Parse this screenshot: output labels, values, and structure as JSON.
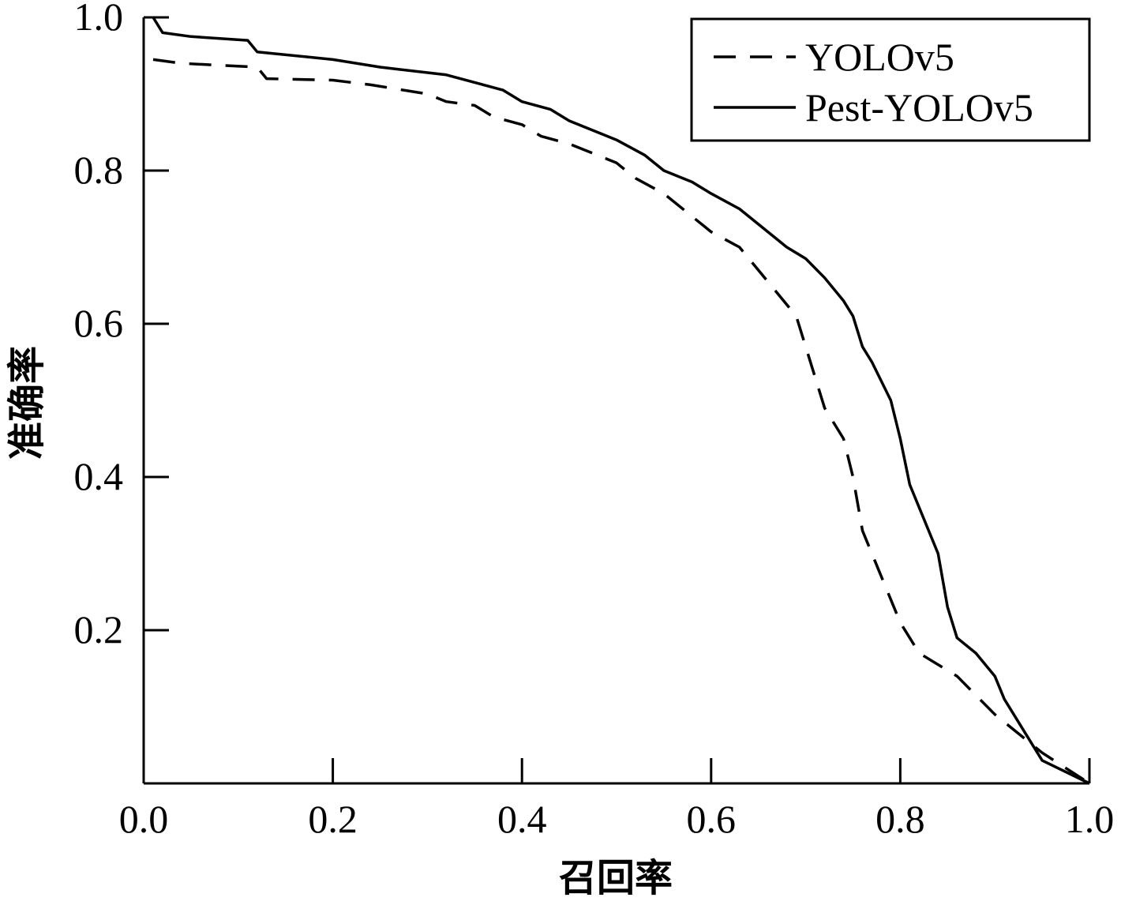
{
  "chart_data": {
    "type": "line",
    "title": "",
    "xlabel": "召回率",
    "ylabel": "准确率",
    "xlim": [
      0,
      1
    ],
    "ylim": [
      0,
      1
    ],
    "xticks": [
      "0.0",
      "0.2",
      "0.4",
      "0.6",
      "0.8",
      "1.0"
    ],
    "yticks": [
      "0.2",
      "0.4",
      "0.6",
      "0.8",
      "1.0"
    ],
    "grid": false,
    "legend_position": "top-right",
    "series": [
      {
        "name": "YOLOv5",
        "style": "dashed",
        "points": [
          [
            0.01,
            0.945
          ],
          [
            0.04,
            0.94
          ],
          [
            0.12,
            0.935
          ],
          [
            0.13,
            0.92
          ],
          [
            0.2,
            0.918
          ],
          [
            0.24,
            0.912
          ],
          [
            0.3,
            0.9
          ],
          [
            0.32,
            0.89
          ],
          [
            0.35,
            0.885
          ],
          [
            0.37,
            0.87
          ],
          [
            0.4,
            0.86
          ],
          [
            0.42,
            0.845
          ],
          [
            0.45,
            0.835
          ],
          [
            0.48,
            0.82
          ],
          [
            0.5,
            0.81
          ],
          [
            0.52,
            0.79
          ],
          [
            0.55,
            0.77
          ],
          [
            0.58,
            0.74
          ],
          [
            0.6,
            0.72
          ],
          [
            0.63,
            0.7
          ],
          [
            0.65,
            0.67
          ],
          [
            0.67,
            0.64
          ],
          [
            0.69,
            0.61
          ],
          [
            0.7,
            0.57
          ],
          [
            0.71,
            0.53
          ],
          [
            0.72,
            0.49
          ],
          [
            0.74,
            0.45
          ],
          [
            0.75,
            0.4
          ],
          [
            0.76,
            0.33
          ],
          [
            0.78,
            0.27
          ],
          [
            0.8,
            0.21
          ],
          [
            0.82,
            0.17
          ],
          [
            0.86,
            0.14
          ],
          [
            0.9,
            0.09
          ],
          [
            0.95,
            0.04
          ],
          [
            1.0,
            0.0
          ]
        ]
      },
      {
        "name": "Pest-YOLOv5",
        "style": "solid",
        "points": [
          [
            0.01,
            1.0
          ],
          [
            0.02,
            0.98
          ],
          [
            0.05,
            0.975
          ],
          [
            0.11,
            0.97
          ],
          [
            0.12,
            0.955
          ],
          [
            0.2,
            0.945
          ],
          [
            0.25,
            0.935
          ],
          [
            0.32,
            0.925
          ],
          [
            0.35,
            0.915
          ],
          [
            0.38,
            0.905
          ],
          [
            0.4,
            0.89
          ],
          [
            0.43,
            0.88
          ],
          [
            0.45,
            0.865
          ],
          [
            0.48,
            0.85
          ],
          [
            0.5,
            0.84
          ],
          [
            0.53,
            0.82
          ],
          [
            0.55,
            0.8
          ],
          [
            0.58,
            0.785
          ],
          [
            0.6,
            0.77
          ],
          [
            0.63,
            0.75
          ],
          [
            0.66,
            0.72
          ],
          [
            0.68,
            0.7
          ],
          [
            0.7,
            0.685
          ],
          [
            0.72,
            0.66
          ],
          [
            0.74,
            0.63
          ],
          [
            0.75,
            0.61
          ],
          [
            0.76,
            0.57
          ],
          [
            0.77,
            0.55
          ],
          [
            0.79,
            0.5
          ],
          [
            0.8,
            0.45
          ],
          [
            0.81,
            0.39
          ],
          [
            0.82,
            0.36
          ],
          [
            0.84,
            0.3
          ],
          [
            0.85,
            0.23
          ],
          [
            0.86,
            0.19
          ],
          [
            0.88,
            0.17
          ],
          [
            0.9,
            0.14
          ],
          [
            0.91,
            0.11
          ],
          [
            0.93,
            0.07
          ],
          [
            0.95,
            0.03
          ],
          [
            1.0,
            0.0
          ]
        ]
      }
    ]
  }
}
